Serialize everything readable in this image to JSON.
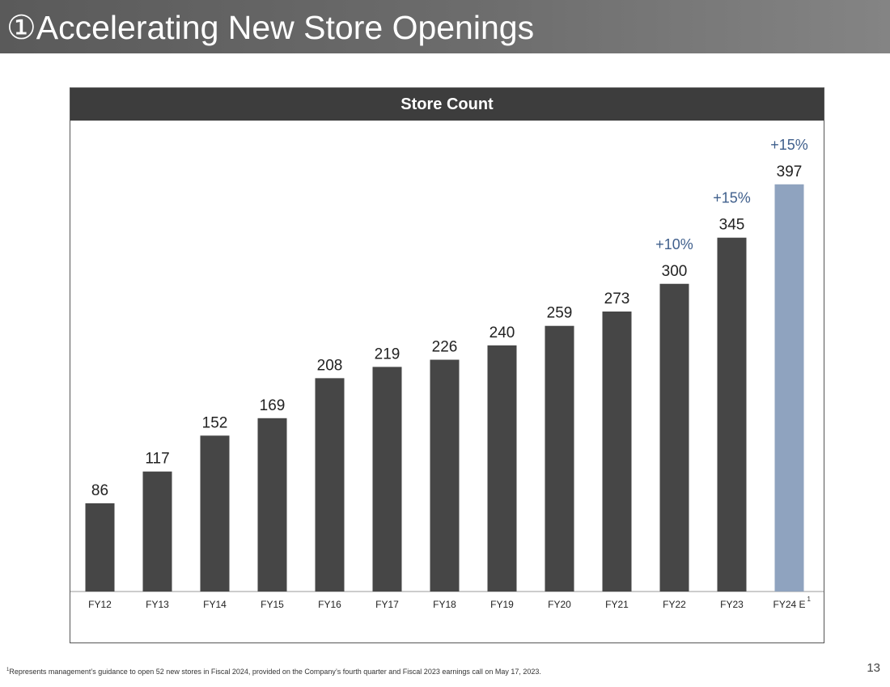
{
  "slide": {
    "title": "①Accelerating New Store Openings",
    "page_number": "13",
    "footnote_marker": "1",
    "footnote_text": "Represents management’s guidance to open 52 new stores in Fiscal 2024, provided on the Company’s fourth quarter and Fiscal 2023 earnings call on May 17, 2023."
  },
  "chart_data": {
    "type": "bar",
    "title": "Store Count",
    "categories": [
      "FY12",
      "FY13",
      "FY14",
      "FY15",
      "FY16",
      "FY17",
      "FY18",
      "FY19",
      "FY20",
      "FY21",
      "FY22",
      "FY23",
      "FY24 E"
    ],
    "category_superscripts": [
      "",
      "",
      "",
      "",
      "",
      "",
      "",
      "",
      "",
      "",
      "",
      "",
      "1"
    ],
    "values": [
      86,
      117,
      152,
      169,
      208,
      219,
      226,
      240,
      259,
      273,
      300,
      345,
      397
    ],
    "growth_labels": [
      "",
      "",
      "",
      "",
      "",
      "",
      "",
      "",
      "",
      "",
      "+10%",
      "+15%",
      "+15%"
    ],
    "ylim": [
      0,
      400
    ],
    "grid": false,
    "legend": "none",
    "colors": {
      "bar": "#464646",
      "estimate_bar": "#8fa3bf",
      "growth_label": "#3f5f8c",
      "value_label": "#222222",
      "axis": "#9a9a9a"
    }
  }
}
